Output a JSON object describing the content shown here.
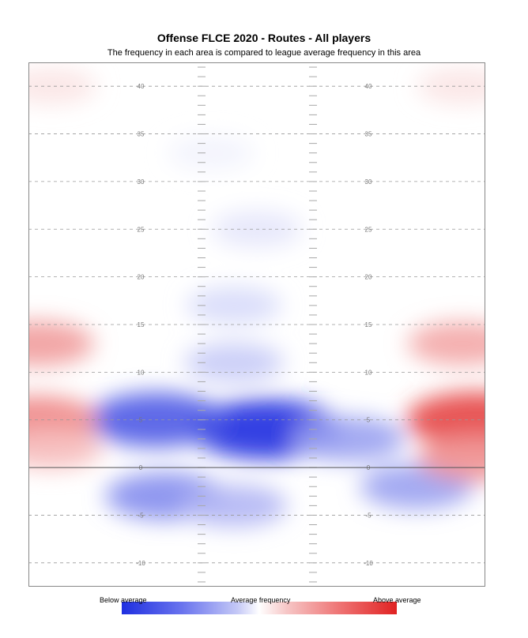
{
  "chart_data": {
    "type": "heatmap",
    "title": "Offense FLCE 2020 - Routes - All players",
    "subtitle": "The frequency in each area is compared to league average frequency in this area",
    "y_ticks": [
      40,
      35,
      30,
      25,
      20,
      15,
      10,
      5,
      0,
      -5,
      -10
    ],
    "y_range": [
      -12.5,
      42.5
    ],
    "line_of_scrimmage": 0,
    "color_scale": {
      "low_color": "#1f2fe0",
      "mid_color": "#ffffff",
      "high_color": "#e02222",
      "low_label": "Below average",
      "mid_label": "Average frequency",
      "high_label": "Above average"
    },
    "hotspots": [
      {
        "x": 0.52,
        "y": 4,
        "value": -1.0
      },
      {
        "x": 0.28,
        "y": 5,
        "value": -0.8
      },
      {
        "x": 0.3,
        "y": -3,
        "value": -0.55
      },
      {
        "x": 0.45,
        "y": -4,
        "value": -0.35
      },
      {
        "x": 0.85,
        "y": -2,
        "value": -0.45
      },
      {
        "x": 0.7,
        "y": 3,
        "value": -0.45
      },
      {
        "x": 0.45,
        "y": 11,
        "value": -0.25
      },
      {
        "x": 0.45,
        "y": 17,
        "value": -0.18
      },
      {
        "x": 0.5,
        "y": 25,
        "value": -0.12
      },
      {
        "x": 0.4,
        "y": 33,
        "value": -0.06
      },
      {
        "x": 0.02,
        "y": 5,
        "value": 0.55
      },
      {
        "x": 0.02,
        "y": 13,
        "value": 0.45
      },
      {
        "x": 0.98,
        "y": 5,
        "value": 0.85
      },
      {
        "x": 0.95,
        "y": 13,
        "value": 0.4
      },
      {
        "x": 0.98,
        "y": 1,
        "value": 0.5
      },
      {
        "x": 0.05,
        "y": 2,
        "value": 0.3
      },
      {
        "x": 0.05,
        "y": 40,
        "value": 0.12
      },
      {
        "x": 0.95,
        "y": 40,
        "value": 0.12
      }
    ]
  }
}
